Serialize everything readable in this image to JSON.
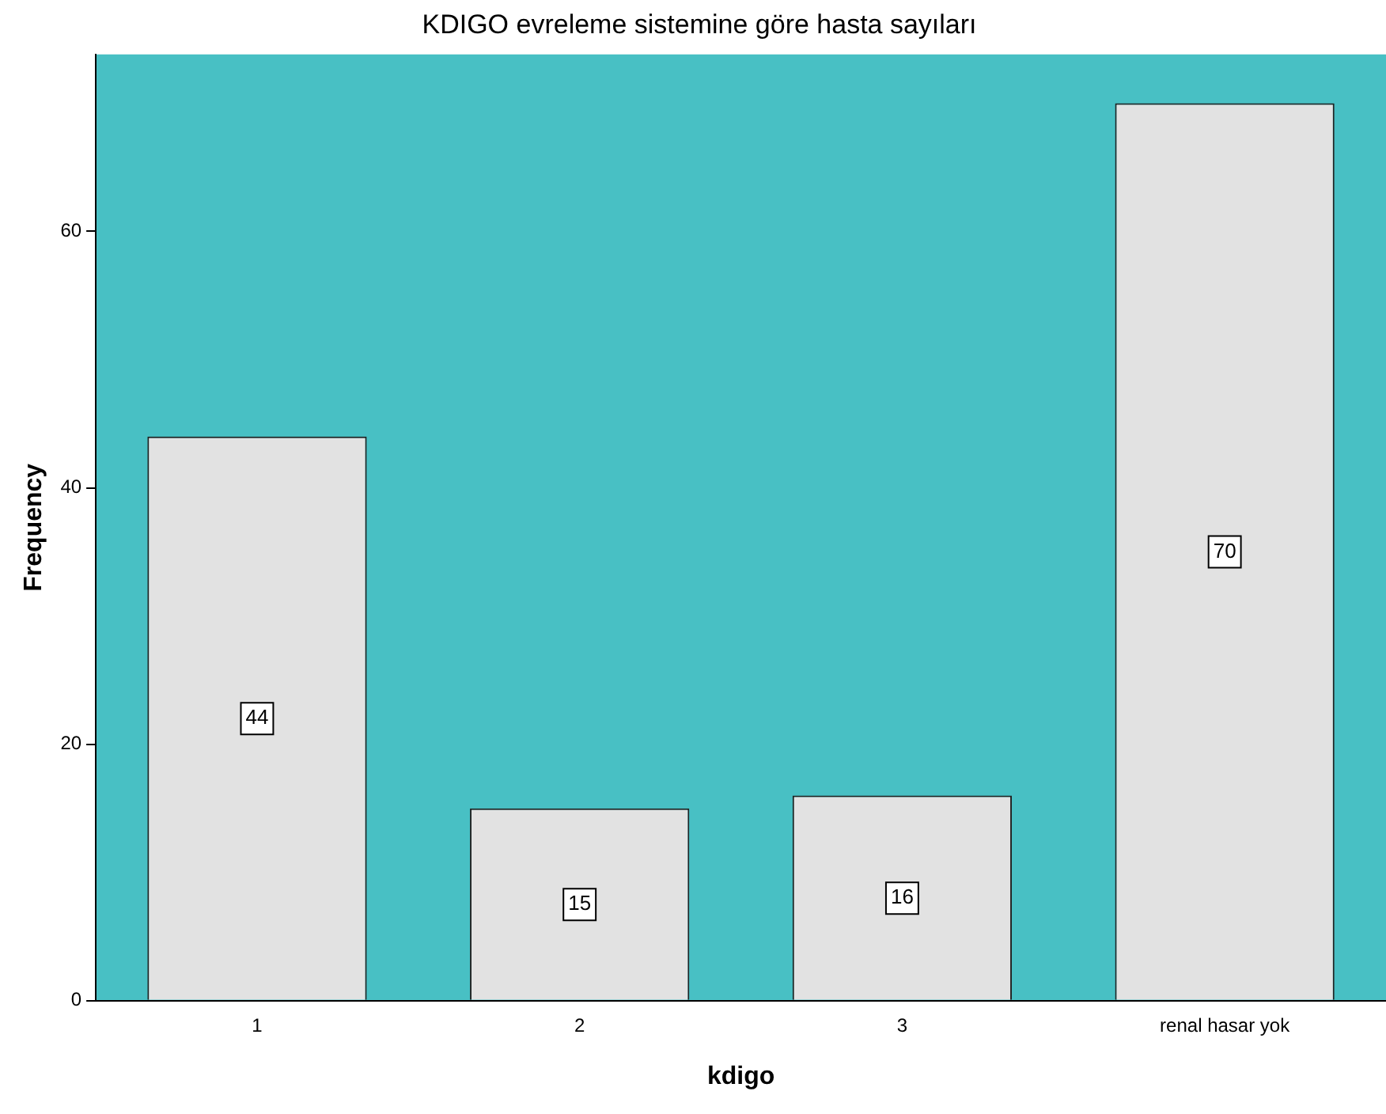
{
  "chart_data": {
    "type": "bar",
    "title": "KDIGO evreleme sistemine göre hasta sayıları",
    "xlabel": "kdigo",
    "ylabel": "Frequency",
    "categories": [
      "1",
      "2",
      "3",
      "renal hasar yok"
    ],
    "values": [
      44,
      15,
      16,
      70
    ],
    "color": "#e2e2e2",
    "ylim": [
      0,
      73.8
    ],
    "yticks": [
      0,
      20,
      40,
      60
    ],
    "grid": false,
    "legend": false,
    "data_labels": true
  }
}
